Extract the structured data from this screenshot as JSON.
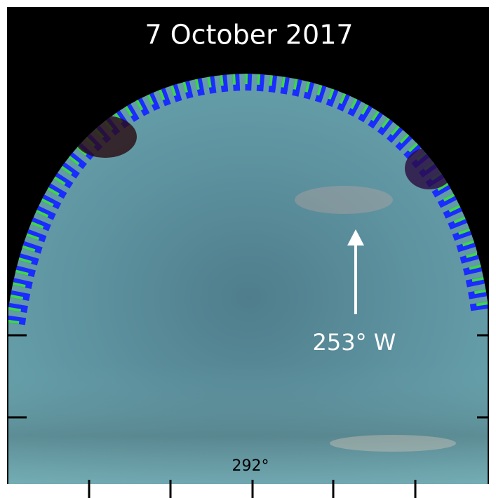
{
  "title": "7 October 2017",
  "annotations": {
    "arrow_label": "253° W",
    "bottom_label": "292°"
  }
}
